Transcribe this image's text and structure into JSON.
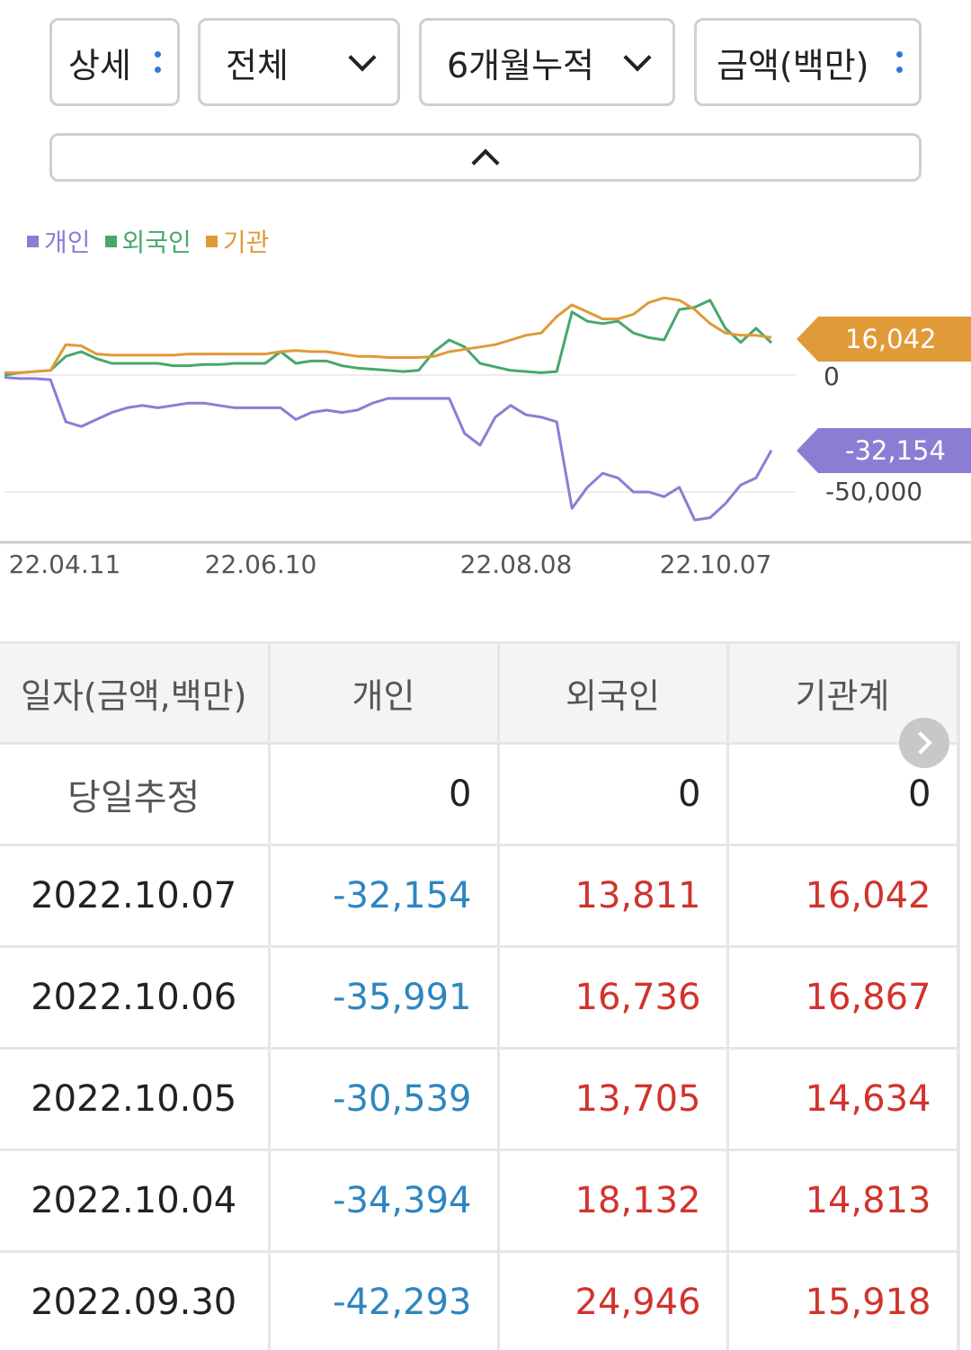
{
  "filters": {
    "detail_label": "상세",
    "scope_label": "전체",
    "period_label": "6개월누적",
    "unit_label": "금액(백만)"
  },
  "legend": [
    {
      "label": "개인",
      "color": "#8a7ed4"
    },
    {
      "label": "외국인",
      "color": "#46a86b"
    },
    {
      "label": "기관",
      "color": "#e09a38"
    }
  ],
  "chart_tags": {
    "institution_value": "16,042",
    "individual_value": "-32,154",
    "zero_label": "0",
    "min_label": "-50,000"
  },
  "chart_data": {
    "type": "line",
    "x_ticks": [
      "22.04.11",
      "22.06.10",
      "22.08.08",
      "22.10.07"
    ],
    "y_ticks": [
      0,
      -50000
    ],
    "series": [
      {
        "name": "개인",
        "color": "#8a7ed4",
        "values": [
          -1000,
          -1500,
          -1500,
          -2000,
          -20000,
          -22000,
          -19000,
          -16000,
          -14000,
          -13000,
          -14000,
          -13000,
          -12000,
          -12000,
          -13000,
          -14000,
          -14000,
          -14000,
          -14000,
          -19000,
          -16000,
          -15000,
          -16000,
          -15000,
          -12000,
          -10000,
          -10000,
          -10000,
          -10000,
          -10000,
          -25000,
          -30000,
          -18000,
          -13000,
          -17000,
          -18000,
          -20000,
          -57000,
          -48000,
          -42000,
          -44000,
          -50000,
          -50000,
          -52000,
          -48000,
          -62000,
          -61000,
          -55000,
          -47000,
          -44000,
          -32154
        ]
      },
      {
        "name": "외국인",
        "color": "#46a86b",
        "values": [
          0,
          1000,
          1500,
          2000,
          8000,
          10000,
          7000,
          5000,
          5000,
          5000,
          5000,
          4000,
          4000,
          4500,
          4500,
          5000,
          5000,
          5000,
          10000,
          5000,
          6000,
          6000,
          4000,
          3000,
          2500,
          2000,
          1500,
          2000,
          10000,
          15000,
          12000,
          5000,
          3500,
          2000,
          1500,
          1000,
          1500,
          27000,
          23000,
          22000,
          23000,
          18000,
          16000,
          15000,
          28000,
          29000,
          32000,
          20000,
          14000,
          20000,
          13811
        ]
      },
      {
        "name": "기관",
        "color": "#e09a38",
        "values": [
          1000,
          1000,
          1500,
          2000,
          13000,
          12500,
          9000,
          8500,
          8500,
          8500,
          8500,
          8500,
          9000,
          9000,
          9000,
          9000,
          9000,
          9000,
          10000,
          10500,
          10000,
          10000,
          9000,
          8000,
          8000,
          7500,
          7500,
          7500,
          8000,
          10000,
          11000,
          12000,
          13000,
          15000,
          17000,
          18000,
          25000,
          30000,
          27000,
          24000,
          24000,
          26000,
          31000,
          33000,
          32000,
          28000,
          22000,
          18000,
          17000,
          17000,
          16042
        ]
      }
    ]
  },
  "table": {
    "headers": [
      "일자(금액,백만)",
      "개인",
      "외국인",
      "기관계"
    ],
    "rows": [
      {
        "date": "당일추정",
        "individual": "0",
        "foreign": "0",
        "institution": "0",
        "ind_sign": "zero",
        "for_sign": "zero",
        "ins_sign": "zero"
      },
      {
        "date": "2022.10.07",
        "individual": "-32,154",
        "foreign": "13,811",
        "institution": "16,042",
        "ind_sign": "neg",
        "for_sign": "pos",
        "ins_sign": "pos"
      },
      {
        "date": "2022.10.06",
        "individual": "-35,991",
        "foreign": "16,736",
        "institution": "16,867",
        "ind_sign": "neg",
        "for_sign": "pos",
        "ins_sign": "pos"
      },
      {
        "date": "2022.10.05",
        "individual": "-30,539",
        "foreign": "13,705",
        "institution": "14,634",
        "ind_sign": "neg",
        "for_sign": "pos",
        "ins_sign": "pos"
      },
      {
        "date": "2022.10.04",
        "individual": "-34,394",
        "foreign": "18,132",
        "institution": "14,813",
        "ind_sign": "neg",
        "for_sign": "pos",
        "ins_sign": "pos"
      },
      {
        "date": "2022.09.30",
        "individual": "-42,293",
        "foreign": "24,946",
        "institution": "15,918",
        "ind_sign": "neg",
        "for_sign": "pos",
        "ins_sign": "pos"
      }
    ]
  }
}
